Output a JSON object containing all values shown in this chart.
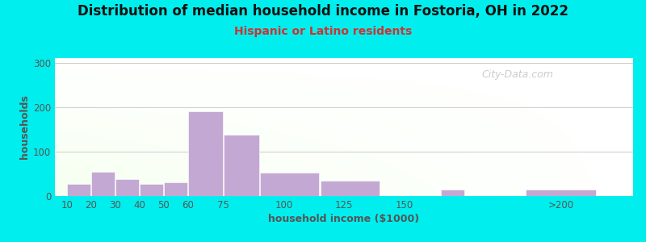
{
  "title": "Distribution of median household income in Fostoria, OH in 2022",
  "subtitle": "Hispanic or Latino residents",
  "xlabel": "household income ($1000)",
  "ylabel": "households",
  "background_color": "#00EEEE",
  "bar_color": "#C4A8D4",
  "bar_edgecolor": "#FFFFFF",
  "values": [
    28,
    55,
    38,
    28,
    30,
    190,
    138,
    52,
    35,
    0,
    15,
    15
  ],
  "bar_lefts": [
    10,
    20,
    30,
    40,
    50,
    60,
    75,
    90,
    115,
    140,
    165,
    200
  ],
  "bar_widths": [
    10,
    10,
    10,
    10,
    10,
    15,
    15,
    25,
    25,
    25,
    10,
    30
  ],
  "xtick_labels": [
    "10",
    "20",
    "30",
    "40",
    "50",
    "60",
    "75",
    "100",
    "125",
    "150",
    ">200"
  ],
  "xtick_positions": [
    10,
    20,
    30,
    40,
    50,
    60,
    75,
    100,
    125,
    150,
    215
  ],
  "ylim": [
    0,
    310
  ],
  "yticks": [
    0,
    100,
    200,
    300
  ],
  "xlim_left": 5,
  "xlim_right": 245,
  "title_fontsize": 12,
  "subtitle_fontsize": 10,
  "axis_label_fontsize": 9,
  "tick_fontsize": 8.5,
  "title_color": "#111111",
  "subtitle_color": "#CC3333",
  "axis_label_color": "#555555",
  "tick_color": "#555555",
  "grid_color": "#CCCCCC",
  "watermark_text": "City-Data.com"
}
